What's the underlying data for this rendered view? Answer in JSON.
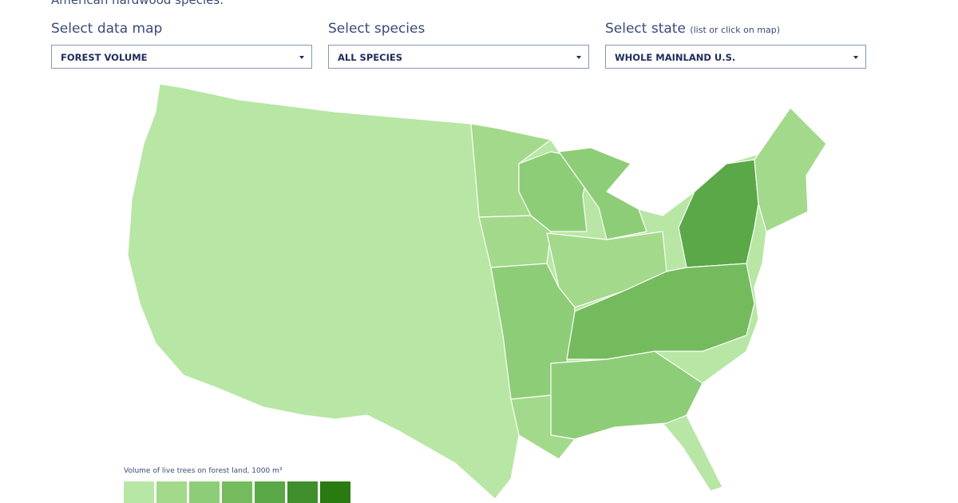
{
  "header": {
    "intro": "American hardwood species."
  },
  "controls": [
    {
      "label": "Select data map",
      "value": "FOREST VOLUME"
    },
    {
      "label": "Select species",
      "value": "ALL SPECIES"
    },
    {
      "label": "Select state",
      "hint": "(list or click on map)",
      "value": "WHOLE MAINLAND U.S."
    }
  ],
  "legend": {
    "title": "Volume of live trees on forest land, 1000 m³",
    "colors": [
      "#b8e6a4",
      "#a3d98b",
      "#8ecd77",
      "#74bb5d",
      "#5aa847",
      "#3f8f2d",
      "#2a7a12"
    ]
  }
}
